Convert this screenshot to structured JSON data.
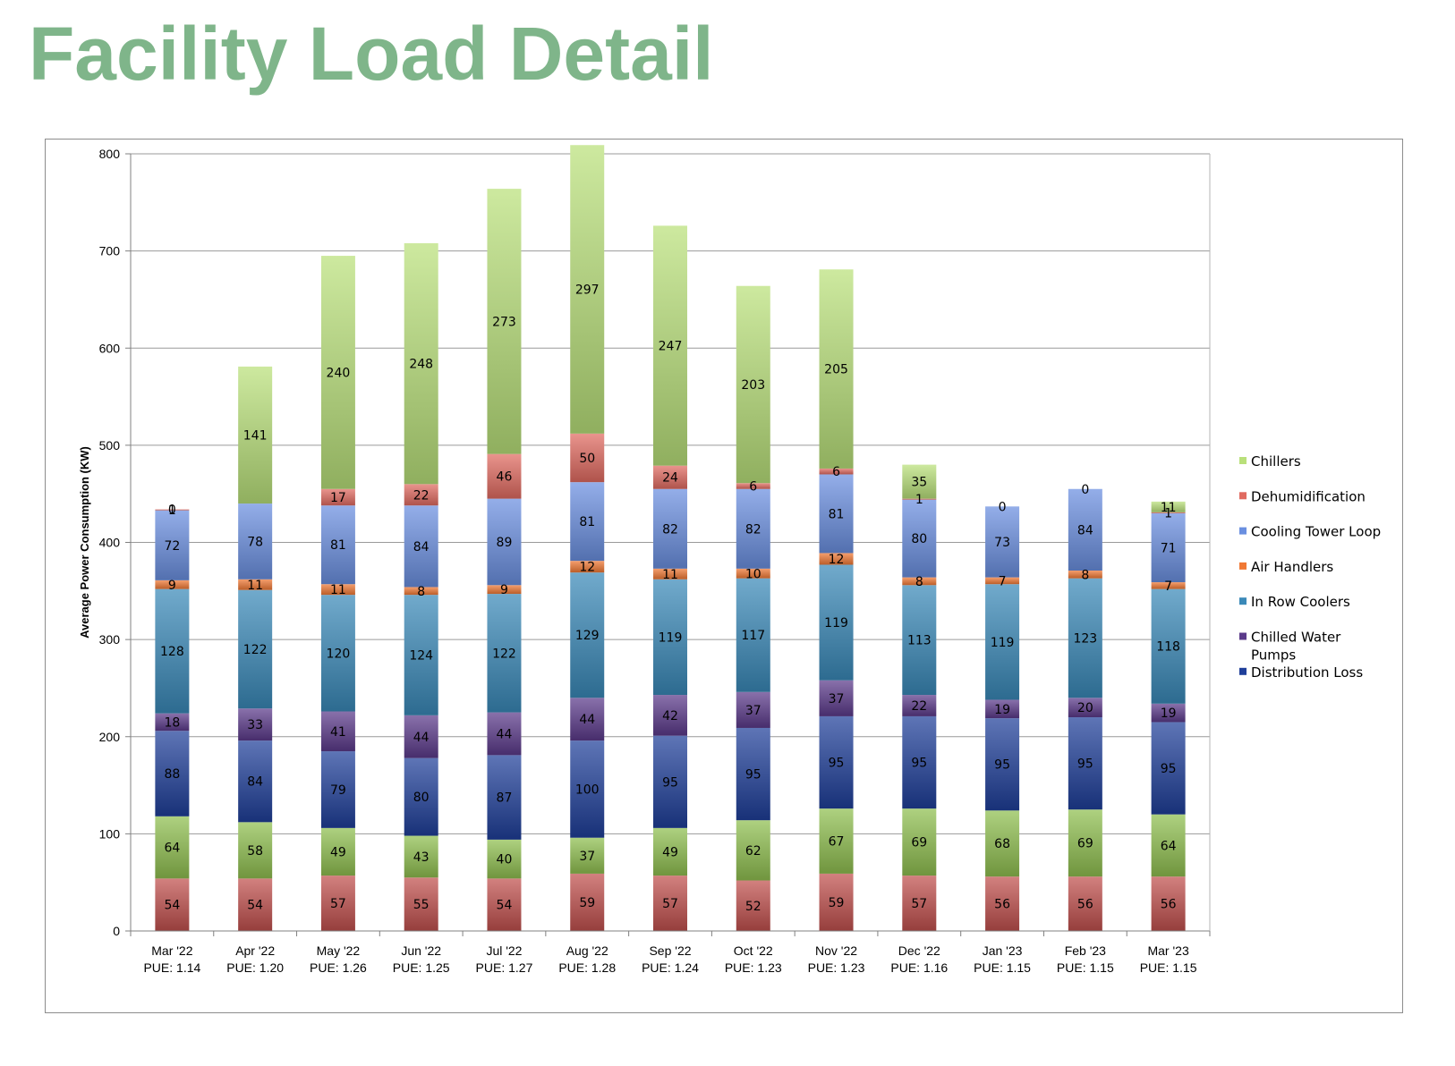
{
  "page": {
    "title": "Facility Load Detail"
  },
  "chart_data": {
    "type": "bar",
    "stacked": true,
    "ylabel": "Average Power Consumption (KW)",
    "ylim": [
      0,
      800
    ],
    "yticks": [
      0,
      100,
      200,
      300,
      400,
      500,
      600,
      700,
      800
    ],
    "grid": true,
    "legend": "right",
    "categories": [
      "Mar '22",
      "Apr '22",
      "May '22",
      "Jun '22",
      "Jul '22",
      "Aug '22",
      "Sep '22",
      "Oct '22",
      "Nov '22",
      "Dec '22",
      "Jan '23",
      "Feb '23",
      "Mar '23"
    ],
    "pue": [
      "PUE: 1.14",
      "PUE: 1.20",
      "PUE: 1.26",
      "PUE: 1.25",
      "PUE: 1.27",
      "PUE: 1.28",
      "PUE: 1.24",
      "PUE: 1.23",
      "PUE: 1.23",
      "PUE: 1.16",
      "PUE: 1.15",
      "PUE: 1.15",
      "PUE: 1.15"
    ],
    "series": [
      {
        "name": "Bottom red",
        "legend": false,
        "color": "#c0504d",
        "values": [
          54,
          54,
          57,
          55,
          54,
          59,
          57,
          52,
          59,
          57,
          56,
          56,
          56
        ]
      },
      {
        "name": "Bottom green",
        "legend": false,
        "color": "#8fbf4f",
        "values": [
          64,
          58,
          49,
          43,
          40,
          37,
          49,
          62,
          67,
          69,
          68,
          69,
          64
        ]
      },
      {
        "name": "Distribution Loss",
        "legend": true,
        "color": "#1f3f9a",
        "values": [
          88,
          84,
          79,
          80,
          87,
          100,
          95,
          95,
          95,
          95,
          95,
          95,
          95
        ]
      },
      {
        "name": "Chilled Water Pumps",
        "legend": true,
        "color": "#5b3a8a",
        "values": [
          18,
          33,
          41,
          44,
          44,
          44,
          42,
          37,
          37,
          22,
          19,
          20,
          19
        ]
      },
      {
        "name": "In Row Coolers",
        "legend": true,
        "color": "#3a89b8",
        "values": [
          128,
          122,
          120,
          124,
          122,
          129,
          119,
          117,
          119,
          113,
          119,
          123,
          118
        ]
      },
      {
        "name": "Air Handlers",
        "legend": true,
        "color": "#f07834",
        "values": [
          9,
          11,
          11,
          8,
          9,
          12,
          11,
          10,
          12,
          8,
          7,
          8,
          7
        ]
      },
      {
        "name": "Cooling Tower Loop",
        "legend": true,
        "color": "#6a8fe0",
        "values": [
          72,
          78,
          81,
          84,
          89,
          81,
          82,
          82,
          81,
          80,
          73,
          84,
          71
        ]
      },
      {
        "name": "Dehumidification",
        "legend": true,
        "color": "#e06a60",
        "values": [
          1,
          0,
          17,
          22,
          46,
          50,
          24,
          6,
          6,
          1,
          0,
          0,
          1
        ]
      },
      {
        "name": "Chillers",
        "legend": true,
        "color": "#b9e07a",
        "values": [
          0,
          141,
          240,
          248,
          273,
          297,
          247,
          203,
          205,
          35,
          0,
          0,
          11
        ]
      }
    ],
    "data_labels": [
      [
        "54",
        "64",
        "88",
        "18",
        "128",
        "9",
        "72",
        "1",
        "0"
      ],
      [
        "54",
        "58",
        "84",
        "33",
        "122",
        "11",
        "78",
        "",
        "141"
      ],
      [
        "57",
        "49",
        "79",
        "41",
        "120",
        "11",
        "81",
        "17",
        "240"
      ],
      [
        "55",
        "43",
        "80",
        "44",
        "124",
        "8",
        "84",
        "22",
        "248"
      ],
      [
        "54",
        "40",
        "87",
        "44",
        "122",
        "9",
        "89",
        "46",
        "273"
      ],
      [
        "59",
        "37",
        "100",
        "44",
        "129",
        "12",
        "81",
        "50",
        "297"
      ],
      [
        "57",
        "49",
        "95",
        "42",
        "119",
        "11",
        "82",
        "24",
        "247"
      ],
      [
        "52",
        "62",
        "95",
        "37",
        "117",
        "10",
        "82",
        "6",
        "203"
      ],
      [
        "59",
        "67",
        "95",
        "37",
        "119",
        "12",
        "81",
        "6",
        "205"
      ],
      [
        "57",
        "69",
        "95",
        "22",
        "113",
        "8",
        "80",
        "1",
        "35"
      ],
      [
        "56",
        "68",
        "95",
        "19",
        "119",
        "7",
        "73",
        "",
        "0"
      ],
      [
        "56",
        "69",
        "95",
        "20",
        "123",
        "8",
        "84",
        "",
        "0"
      ],
      [
        "56",
        "64",
        "95",
        "19",
        "118",
        "7",
        "71",
        "1",
        "11"
      ]
    ],
    "legend_order": [
      "Chillers",
      "Dehumidification",
      "Cooling Tower Loop",
      "Air Handlers",
      "In Row Coolers",
      "Chilled Water Pumps",
      "Distribution Loss"
    ],
    "legend_labels": [
      [
        "Chillers"
      ],
      [
        "Dehumidification"
      ],
      [
        "Cooling Tower Loop"
      ],
      [
        "Air Handlers"
      ],
      [
        "In Row Coolers"
      ],
      [
        "Chilled Water",
        "Pumps"
      ],
      [
        "Distribution Loss"
      ]
    ]
  }
}
